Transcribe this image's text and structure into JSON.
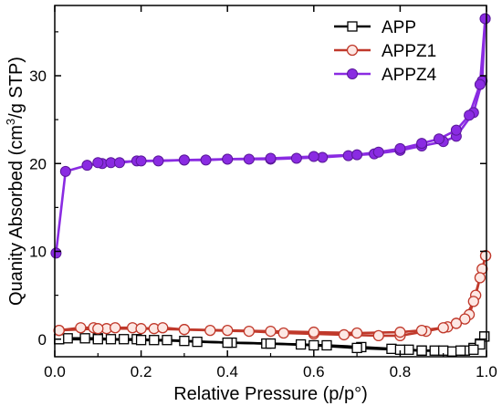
{
  "chart_data": {
    "type": "line",
    "xlabel": "Relative Pressure (p/p°)",
    "ylabel_main": "Quanity Absorbed (cm",
    "ylabel_sup": "3",
    "ylabel_tail": "/g STP)",
    "xlim": [
      0.0,
      1.0
    ],
    "ylim": [
      -2,
      38
    ],
    "xticks": [
      0.0,
      0.2,
      0.4,
      0.6,
      0.8,
      1.0
    ],
    "xtick_labels": [
      "0.0",
      "0.2",
      "0.4",
      "0.6",
      "0.8",
      "1.0"
    ],
    "yticks": [
      0,
      10,
      20,
      30
    ],
    "ytick_labels": [
      "0",
      "10",
      "20",
      "30"
    ],
    "grid": false,
    "legend_position": "top-right",
    "series": [
      {
        "name": "APP",
        "color": "#000000",
        "marker": "square-open",
        "adsorption": {
          "x": [
            0.01,
            0.03,
            0.07,
            0.1,
            0.13,
            0.16,
            0.19,
            0.23,
            0.26,
            0.33,
            0.41,
            0.49,
            0.57,
            0.63,
            0.71,
            0.78,
            0.82,
            0.85,
            0.88,
            0.92,
            0.95,
            0.97,
            0.985,
            0.995
          ],
          "y": [
            0.0,
            0.1,
            0.1,
            0.1,
            0.0,
            0.0,
            0.0,
            -0.1,
            -0.1,
            -0.3,
            -0.4,
            -0.5,
            -0.6,
            -0.7,
            -0.9,
            -1.1,
            -1.2,
            -1.3,
            -1.3,
            -1.4,
            -1.3,
            -1.0,
            -0.5,
            0.3
          ]
        },
        "desorption": {
          "x": [
            0.995,
            0.985,
            0.97,
            0.94,
            0.9,
            0.85,
            0.8,
            0.7,
            0.6,
            0.5,
            0.4,
            0.3,
            0.2,
            0.1,
            0.01
          ],
          "y": [
            0.3,
            -0.6,
            -1.2,
            -1.3,
            -1.3,
            -1.3,
            -1.2,
            -1.0,
            -0.7,
            -0.5,
            -0.4,
            -0.2,
            -0.1,
            0.0,
            0.0
          ]
        }
      },
      {
        "name": "APPZ1",
        "color": "#c0392b",
        "marker": "circle-open",
        "adsorption": {
          "x": [
            0.01,
            0.06,
            0.09,
            0.12,
            0.14,
            0.18,
            0.23,
            0.25,
            0.3,
            0.36,
            0.45,
            0.53,
            0.6,
            0.67,
            0.75,
            0.8,
            0.86,
            0.91,
            0.93,
            0.96,
            0.975,
            0.99,
            0.998
          ],
          "y": [
            1.0,
            1.3,
            1.3,
            1.2,
            1.3,
            1.3,
            1.2,
            1.3,
            1.1,
            1.0,
            0.9,
            0.7,
            0.6,
            0.5,
            0.4,
            0.4,
            0.9,
            1.4,
            1.8,
            2.8,
            5.0,
            8.0,
            9.5
          ]
        },
        "desorption": {
          "x": [
            0.998,
            0.985,
            0.97,
            0.95,
            0.93,
            0.9,
            0.85,
            0.8,
            0.7,
            0.6,
            0.5,
            0.4,
            0.3,
            0.2,
            0.1,
            0.01
          ],
          "y": [
            9.5,
            7.0,
            4.3,
            2.3,
            1.8,
            1.3,
            1.0,
            0.8,
            0.7,
            0.8,
            0.9,
            1.0,
            1.1,
            1.2,
            1.2,
            1.0
          ]
        }
      },
      {
        "name": "APPZ4",
        "color": "#8a2be2",
        "marker": "circle-filled",
        "adsorption": {
          "x": [
            0.003,
            0.025,
            0.075,
            0.11,
            0.13,
            0.15,
            0.19,
            0.24,
            0.3,
            0.35,
            0.4,
            0.45,
            0.5,
            0.56,
            0.62,
            0.68,
            0.74,
            0.8,
            0.85,
            0.9,
            0.93,
            0.97,
            0.99,
            0.997
          ],
          "y": [
            9.8,
            19.1,
            19.8,
            20.0,
            20.1,
            20.1,
            20.3,
            20.3,
            20.4,
            20.4,
            20.5,
            20.5,
            20.5,
            20.6,
            20.7,
            20.9,
            21.1,
            21.5,
            22.0,
            22.5,
            23.1,
            25.8,
            29.4,
            36.5
          ]
        },
        "desorption": {
          "x": [
            0.997,
            0.985,
            0.96,
            0.93,
            0.89,
            0.85,
            0.8,
            0.75,
            0.7,
            0.6,
            0.5,
            0.4,
            0.3,
            0.2,
            0.1
          ],
          "y": [
            36.5,
            29.0,
            25.5,
            23.8,
            22.8,
            22.3,
            21.7,
            21.3,
            21.0,
            20.8,
            20.6,
            20.5,
            20.4,
            20.3,
            20.1
          ]
        }
      }
    ]
  }
}
